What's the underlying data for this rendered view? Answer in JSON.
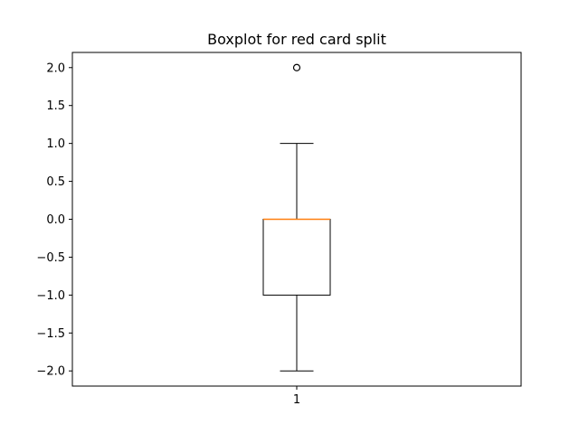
{
  "chart_data": {
    "type": "boxplot",
    "title": "Boxplot for red card split",
    "xlabel": "",
    "ylabel": "",
    "categories": [
      "1"
    ],
    "ylim": [
      -2.2,
      2.2
    ],
    "yticks": [
      -2.0,
      -1.5,
      -1.0,
      -0.5,
      0.0,
      0.5,
      1.0,
      1.5,
      2.0
    ],
    "ytick_labels": [
      "−2.0",
      "−1.5",
      "−1.0",
      "−0.5",
      "0.0",
      "0.5",
      "1.0",
      "1.5",
      "2.0"
    ],
    "boxes": [
      {
        "category": "1",
        "whisker_low": -2.0,
        "q1": -1.0,
        "median": 0.0,
        "q3": 0.0,
        "whisker_high": 1.0,
        "outliers": [
          2.0
        ]
      }
    ],
    "grid": false,
    "colors": {
      "box": "#000000",
      "median": "#ff7f0e",
      "whisker": "#000000",
      "outlier": "#000000"
    }
  }
}
